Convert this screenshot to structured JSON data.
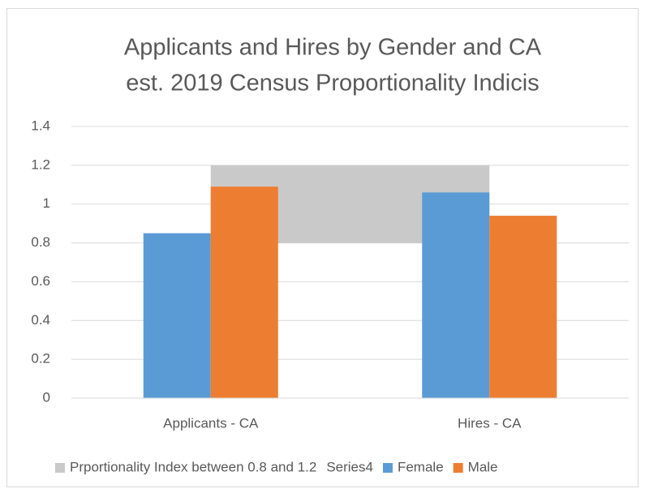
{
  "chart_data": {
    "type": "bar",
    "title": [
      "Applicants and Hires by Gender and CA",
      "est. 2019 Census Proportionality Indicis"
    ],
    "categories": [
      "Applicants - CA",
      "Hires - CA"
    ],
    "series": [
      {
        "name": "Prportionality Index between 0.8 and 1.2",
        "type": "area",
        "stack": true,
        "color": "#c9c9c9",
        "values": [
          0.4,
          0.4
        ]
      },
      {
        "name": "Series4",
        "type": "area",
        "stack": true,
        "values": [
          0.8,
          0.8
        ]
      },
      {
        "name": "Female",
        "type": "bar",
        "color": "#5b9bd5",
        "values": [
          0.85,
          1.06
        ]
      },
      {
        "name": "Male",
        "type": "bar",
        "color": "#ed7d31",
        "values": [
          1.09,
          0.94
        ]
      }
    ],
    "ylim": [
      0,
      1.4
    ],
    "yticks": [
      0,
      0.2,
      0.4,
      0.6,
      0.8,
      1,
      1.2,
      1.4
    ],
    "grid": true,
    "legend": "bottom"
  }
}
